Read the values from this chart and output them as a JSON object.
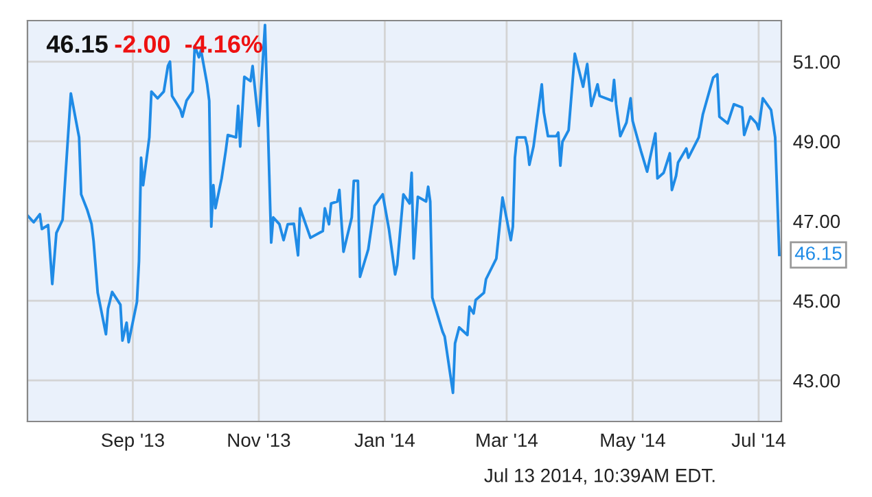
{
  "chart_data": {
    "type": "line",
    "title": "46.15",
    "subtitle": "-2.00  -4.16%",
    "annotations": [
      {
        "text": "46.15",
        "x": "2014-07-11",
        "y": 46.15
      },
      "Jul 13 2014, 10:39AM EDT."
    ],
    "x": [
      "2013-07-12",
      "2013-07-15",
      "2013-07-18",
      "2013-07-19",
      "2013-07-22",
      "2013-07-24",
      "2013-07-26",
      "2013-07-29",
      "2013-08-02",
      "2013-08-06",
      "2013-08-07",
      "2013-08-10",
      "2013-08-12",
      "2013-08-13",
      "2013-08-15",
      "2013-08-19",
      "2013-08-20",
      "2013-08-22",
      "2013-08-26",
      "2013-08-27",
      "2013-08-29",
      "2013-08-30",
      "2013-09-03",
      "2013-09-04",
      "2013-09-05",
      "2013-09-06",
      "2013-09-09",
      "2013-09-10",
      "2013-09-13",
      "2013-09-16",
      "2013-09-18",
      "2013-09-19",
      "2013-09-20",
      "2013-09-24",
      "2013-09-25",
      "2013-09-27",
      "2013-09-30",
      "2013-10-01",
      "2013-10-03",
      "2013-10-04",
      "2013-10-07",
      "2013-10-08",
      "2013-10-09",
      "2013-10-10",
      "2013-10-11",
      "2013-10-14",
      "2013-10-16",
      "2013-10-17",
      "2013-10-21",
      "2013-10-22",
      "2013-10-23",
      "2013-10-25",
      "2013-10-28",
      "2013-10-29",
      "2013-11-01",
      "2013-11-04",
      "2013-11-07",
      "2013-11-08",
      "2013-11-11",
      "2013-11-13",
      "2013-11-15",
      "2013-11-18",
      "2013-11-20",
      "2013-11-21",
      "2013-11-26",
      "2013-12-02",
      "2013-12-03",
      "2013-12-05",
      "2013-12-06",
      "2013-12-09",
      "2013-12-10",
      "2013-12-12",
      "2013-12-16",
      "2013-12-17",
      "2013-12-19",
      "2013-12-20",
      "2013-12-24",
      "2013-12-27",
      "2013-12-31",
      "2014-01-03",
      "2014-01-06",
      "2014-01-07",
      "2014-01-10",
      "2014-01-13",
      "2014-01-14",
      "2014-01-15",
      "2014-01-17",
      "2014-01-21",
      "2014-01-22",
      "2014-01-23",
      "2014-01-24",
      "2014-01-29",
      "2014-01-30",
      "2014-02-03",
      "2014-02-04",
      "2014-02-06",
      "2014-02-10",
      "2014-02-11",
      "2014-02-13",
      "2014-02-14",
      "2014-02-18",
      "2014-02-19",
      "2014-02-24",
      "2014-02-27",
      "2014-03-03",
      "2014-03-04",
      "2014-03-05",
      "2014-03-06",
      "2014-03-10",
      "2014-03-11",
      "2014-03-12",
      "2014-03-14",
      "2014-03-18",
      "2014-03-19",
      "2014-03-21",
      "2014-03-25",
      "2014-03-26",
      "2014-03-27",
      "2014-03-28",
      "2014-03-31",
      "2014-04-03",
      "2014-04-07",
      "2014-04-09",
      "2014-04-11",
      "2014-04-14",
      "2014-04-15",
      "2014-04-21",
      "2014-04-22",
      "2014-04-23",
      "2014-04-25",
      "2014-04-28",
      "2014-04-30",
      "2014-05-01",
      "2014-05-05",
      "2014-05-06",
      "2014-05-08",
      "2014-05-12",
      "2014-05-13",
      "2014-05-16",
      "2014-05-19",
      "2014-05-20",
      "2014-05-22",
      "2014-05-23",
      "2014-05-27",
      "2014-05-28",
      "2014-06-02",
      "2014-06-04",
      "2014-06-09",
      "2014-06-11",
      "2014-06-12",
      "2014-06-16",
      "2014-06-18",
      "2014-06-19",
      "2014-06-23",
      "2014-06-24",
      "2014-06-27",
      "2014-06-30",
      "2014-07-01",
      "2014-07-03",
      "2014-07-07",
      "2014-07-09",
      "2014-07-11"
    ],
    "series": [
      {
        "color": "#1f8be6",
        "values": [
          47.14,
          46.97,
          47.17,
          46.8,
          46.9,
          45.42,
          46.7,
          47.03,
          50.2,
          49.1,
          47.67,
          47.27,
          46.93,
          46.5,
          45.2,
          44.16,
          44.8,
          45.22,
          44.9,
          44.0,
          44.45,
          43.96,
          44.97,
          46.0,
          48.59,
          47.9,
          49.1,
          50.25,
          50.08,
          50.25,
          50.89,
          51.0,
          50.14,
          49.8,
          49.62,
          50.02,
          50.25,
          51.4,
          51.11,
          51.29,
          50.43,
          50.02,
          46.86,
          47.9,
          47.32,
          48.07,
          48.76,
          49.16,
          49.1,
          49.89,
          48.87,
          50.62,
          50.51,
          50.89,
          49.39,
          51.92,
          46.46,
          47.09,
          46.92,
          46.52,
          46.92,
          46.93,
          46.14,
          47.32,
          46.58,
          46.75,
          47.32,
          46.92,
          47.44,
          47.49,
          47.78,
          46.23,
          47.09,
          48.01,
          48.01,
          45.6,
          46.29,
          47.38,
          47.67,
          46.8,
          45.66,
          45.89,
          47.67,
          47.44,
          48.21,
          46.06,
          47.61,
          47.49,
          47.86,
          47.49,
          45.08,
          44.22,
          44.1,
          42.69,
          43.93,
          44.33,
          44.14,
          44.85,
          44.68,
          45.02,
          45.2,
          45.54,
          46.06,
          47.59,
          46.52,
          46.86,
          48.59,
          49.1,
          49.1,
          48.87,
          48.41,
          48.87,
          50.43,
          49.73,
          49.13,
          49.13,
          49.22,
          48.39,
          48.99,
          49.28,
          51.2,
          50.37,
          50.94,
          49.89,
          50.43,
          50.14,
          50.02,
          50.54,
          49.93,
          49.13,
          49.47,
          50.08,
          49.51,
          48.76,
          48.59,
          48.24,
          49.2,
          48.07,
          48.21,
          48.7,
          47.78,
          48.13,
          48.47,
          48.82,
          48.59,
          49.1,
          49.68,
          50.6,
          50.68,
          49.62,
          49.45,
          49.77,
          49.93,
          49.85,
          49.16,
          49.62,
          49.45,
          49.3,
          50.08,
          49.79,
          49.1,
          46.15
        ]
      }
    ],
    "xlim": [
      "2013-07-12",
      "2014-07-12"
    ],
    "ylim": [
      41.97,
      52.03
    ],
    "xticks": [
      {
        "value": "2013-09-01",
        "label": "Sep '13"
      },
      {
        "value": "2013-11-01",
        "label": "Nov '13"
      },
      {
        "value": "2014-01-01",
        "label": "Jan '14"
      },
      {
        "value": "2014-03-01",
        "label": "Mar '14"
      },
      {
        "value": "2014-05-01",
        "label": "May '14"
      },
      {
        "value": "2014-07-01",
        "label": "Jul '14"
      }
    ],
    "yticks": [
      {
        "value": 43,
        "label": "43.00"
      },
      {
        "value": 45,
        "label": "45.00"
      },
      {
        "value": 47,
        "label": "47.00"
      },
      {
        "value": 49,
        "label": "49.00"
      },
      {
        "value": 51,
        "label": "51.00"
      }
    ],
    "grid": true,
    "marker": "none",
    "line_style": "solid"
  }
}
